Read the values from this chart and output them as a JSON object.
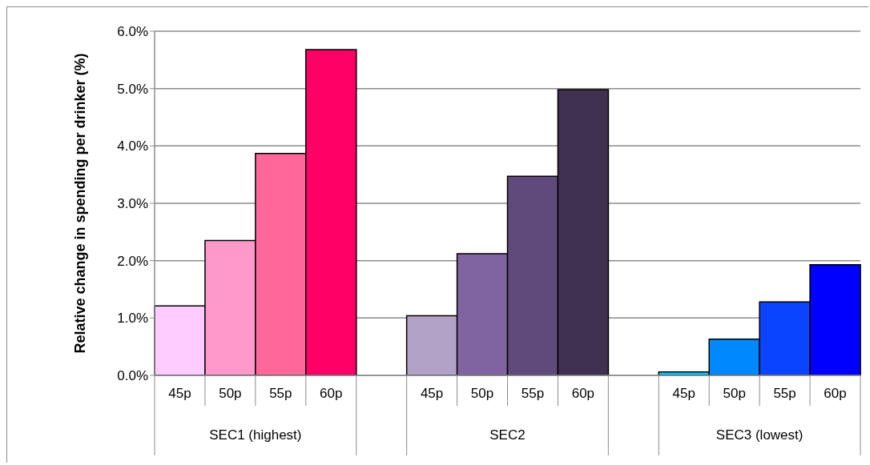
{
  "chart_data": {
    "type": "bar",
    "ylabel": "Relative change in spending per drinker (%)",
    "categories": [
      "45p",
      "50p",
      "55p",
      "60p",
      null,
      "45p",
      "50p",
      "55p",
      "60p",
      null,
      "45p",
      "50p",
      "55p",
      "60p"
    ],
    "values": [
      1.21,
      2.35,
      3.87,
      5.68,
      null,
      1.04,
      2.12,
      3.47,
      4.98,
      null,
      0.06,
      0.63,
      1.28,
      1.93
    ],
    "colors": [
      "#ffccff",
      "#ff99cc",
      "#ff6699",
      "#ff0066",
      null,
      "#b3a2c7",
      "#8064a2",
      "#604a7b",
      "#403151",
      null,
      "#00ccff",
      "#0088ff",
      "#0a44ff",
      "#0000ff"
    ],
    "annotations": [
      "SEC1 (highest)",
      "SEC2",
      "SEC3 (lowest)"
    ],
    "ylim": [
      0,
      6
    ],
    "yticks": [
      {
        "value": 0,
        "label": "0.0%"
      },
      {
        "value": 1,
        "label": "1.0%"
      },
      {
        "value": 2,
        "label": "2.0%"
      },
      {
        "value": 3,
        "label": "3.0%"
      },
      {
        "value": 4,
        "label": "4.0%"
      },
      {
        "value": 5,
        "label": "5.0%"
      },
      {
        "value": 6,
        "label": "6.0%"
      }
    ],
    "grid": "y",
    "legend": false
  }
}
